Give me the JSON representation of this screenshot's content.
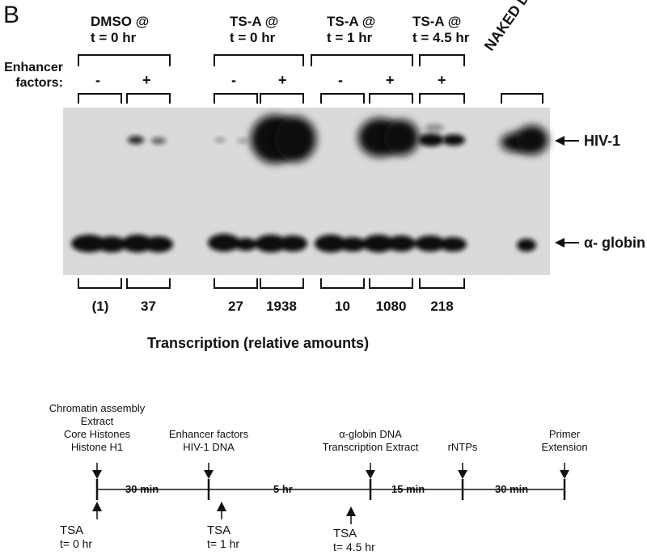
{
  "figure": {
    "panel_letter": "B",
    "groups": [
      {
        "line1": "DMSO @",
        "line2": "t = 0 hr"
      },
      {
        "line1": "TS-A @",
        "line2": "t = 0 hr"
      },
      {
        "line1": "TS-A @",
        "line2": "t = 1 hr"
      },
      {
        "line1": "TS-A @",
        "line2": "t = 4.5 hr"
      }
    ],
    "naked_dna_label": "NAKED DNA",
    "enhancer_label_line1": "Enhancer",
    "enhancer_label_line2": "factors:",
    "signs": [
      "-",
      "+",
      "-",
      "+",
      "-",
      "+",
      "+"
    ],
    "band_markers": {
      "hiv": "HIV-1",
      "globin": "α- globin"
    },
    "quantification": [
      "(1)",
      "37",
      "27",
      "1938",
      "10",
      "1080",
      "218"
    ],
    "x_caption": "Transcription (relative amounts)",
    "timeline": {
      "top_labels": [
        {
          "lines": [
            "Chromatin assembly",
            "Extract",
            "Core Histones",
            "Histone H1"
          ]
        },
        {
          "lines": [
            "Enhancer factors",
            "HIV-1 DNA"
          ]
        },
        {
          "lines": [
            "α-globin DNA",
            "Transcription Extract"
          ]
        },
        {
          "lines": [
            "rNTPs"
          ]
        },
        {
          "lines": [
            "Primer",
            "Extension"
          ]
        }
      ],
      "intervals": [
        "30 min",
        "5 hr",
        "15 min",
        "30 min"
      ],
      "tsa_labels": [
        {
          "name": "TSA",
          "time": "t= 0 hr"
        },
        {
          "name": "TSA",
          "time": "t= 1 hr"
        },
        {
          "name": "TSA",
          "time": "t= 4.5 hr"
        }
      ]
    }
  }
}
